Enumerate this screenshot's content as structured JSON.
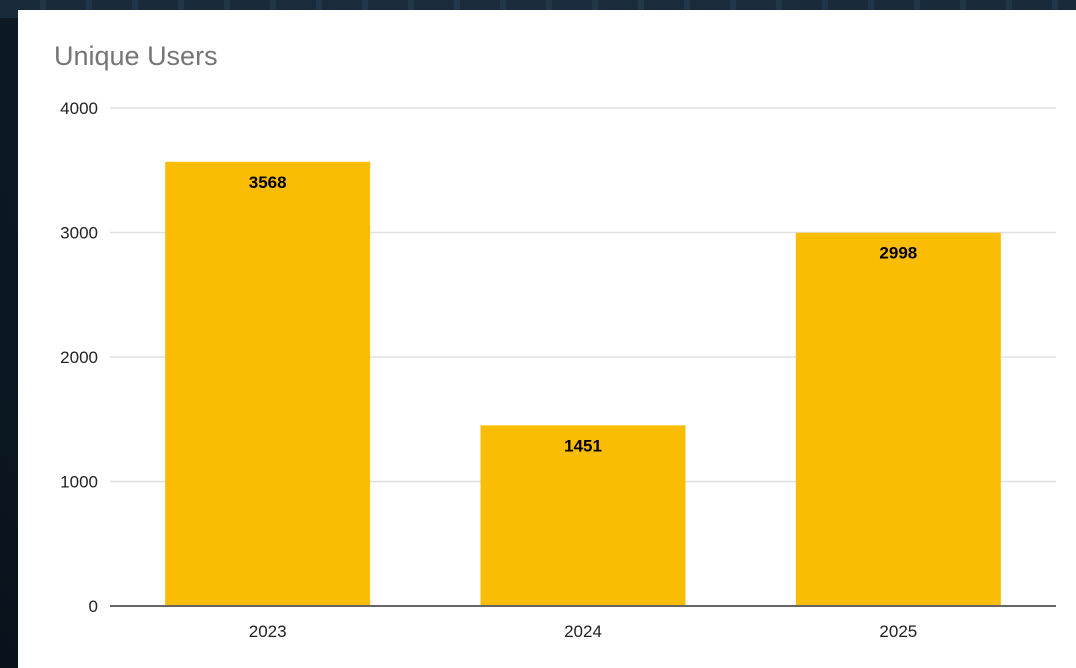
{
  "chart_data": {
    "type": "bar",
    "title": "Unique Users",
    "xlabel": "",
    "ylabel": "",
    "categories": [
      "2023",
      "2024",
      "2025"
    ],
    "values": [
      3568,
      1451,
      2998
    ],
    "value_labels": [
      "3568",
      "1451",
      "2998"
    ],
    "ylim": [
      0,
      4000
    ],
    "y_ticks": [
      "0",
      "1000",
      "2000",
      "3000",
      "4000"
    ],
    "grid": true,
    "legend": "none",
    "bar_color": "#fbbc04",
    "label_color": "#000000"
  }
}
